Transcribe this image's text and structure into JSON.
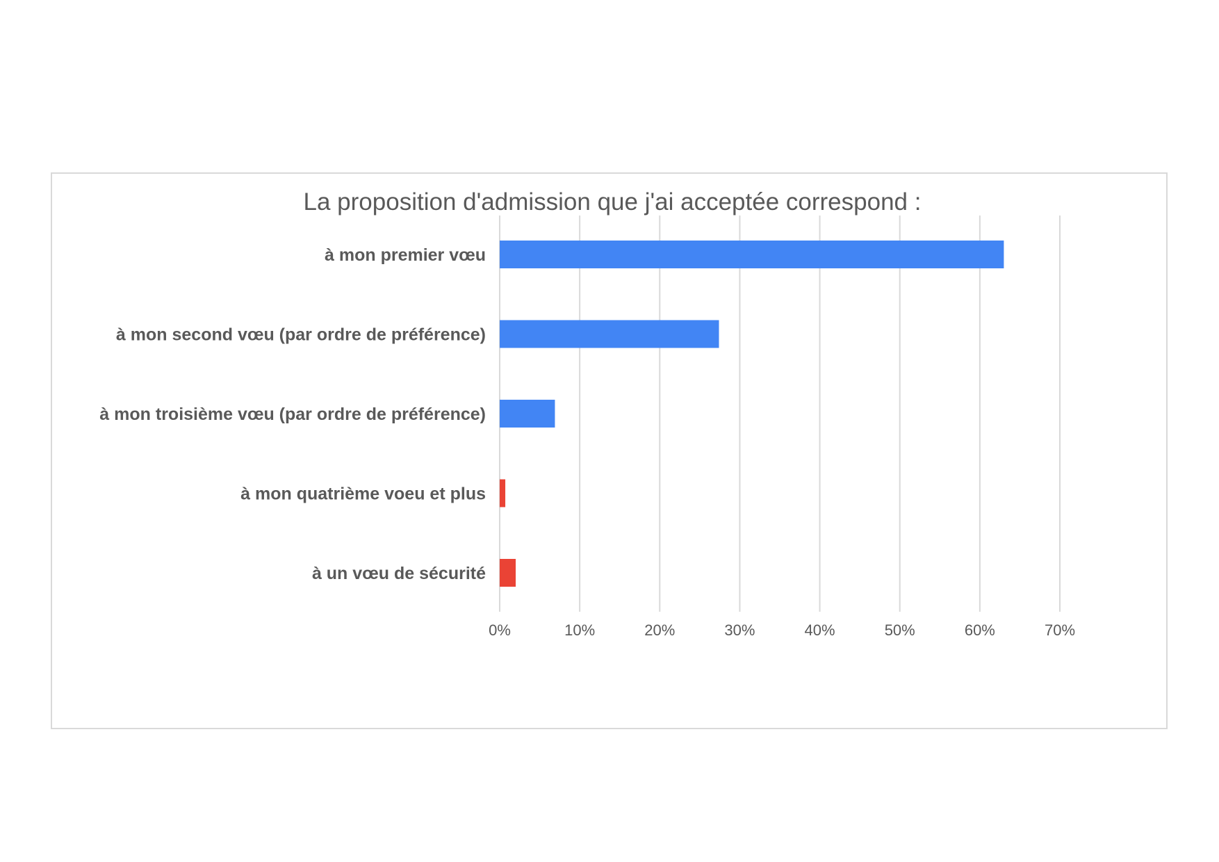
{
  "chart_data": {
    "type": "bar",
    "orientation": "horizontal",
    "title": "La proposition d'admission que j'ai acceptée correspond :",
    "xlabel": "",
    "ylabel": "",
    "categories": [
      "à mon premier vœu",
      "à mon second vœu (par ordre de préférence)",
      "à mon troisième vœu (par ordre de préférence)",
      "à mon quatrième voeu et plus",
      "à un vœu de sécurité"
    ],
    "values": [
      63,
      27.4,
      6.9,
      0.7,
      2.0
    ],
    "bar_colors": [
      "#4285f4",
      "#4285f4",
      "#4285f4",
      "#ea4335",
      "#ea4335"
    ],
    "xlim": [
      0,
      70
    ],
    "x_ticks": [
      0,
      10,
      20,
      30,
      40,
      50,
      60,
      70
    ],
    "x_tick_labels": [
      "0%",
      "10%",
      "20%",
      "30%",
      "40%",
      "50%",
      "60%",
      "70%"
    ],
    "grid": "vertical",
    "legend": "none"
  }
}
